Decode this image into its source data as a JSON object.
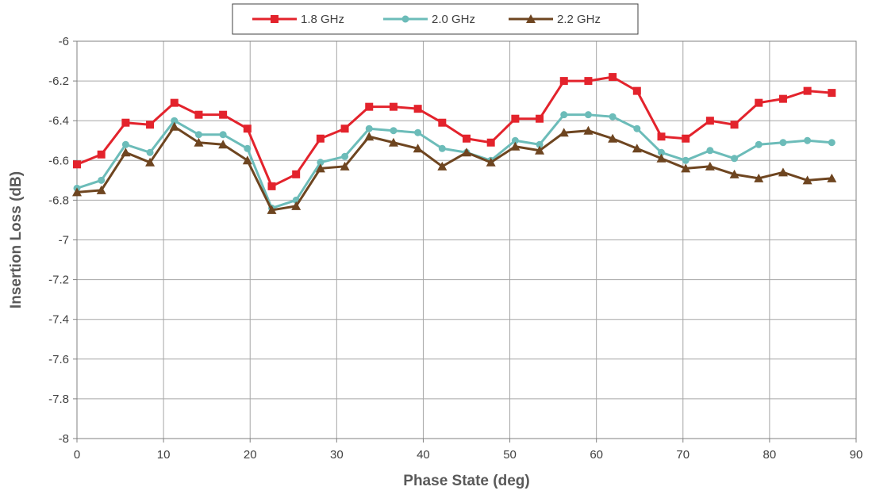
{
  "chart_data": {
    "type": "line",
    "xlabel": "Phase State (deg)",
    "ylabel": "Insertion Loss (dB)",
    "xlim": [
      0,
      90
    ],
    "ylim": [
      -8,
      -6
    ],
    "x_ticks": [
      0,
      10,
      20,
      30,
      40,
      50,
      60,
      70,
      80,
      90
    ],
    "y_ticks": [
      -6,
      -6.2,
      -6.4,
      -6.6,
      -6.8,
      -7,
      -7.2,
      -7.4,
      -7.6,
      -7.8,
      -8
    ],
    "x_tick_labels": [
      "0",
      "10",
      "20",
      "30",
      "40",
      "50",
      "60",
      "70",
      "80",
      "90"
    ],
    "y_tick_labels": [
      "-6",
      "-6.2",
      "-6.4",
      "-6.6",
      "-6.8",
      "-7",
      "-7.2",
      "-7.4",
      "-7.6",
      "-7.8",
      "-8"
    ],
    "grid": true,
    "legend_position": "top",
    "x": [
      0,
      2.8125,
      5.625,
      8.4375,
      11.25,
      14.0625,
      16.875,
      19.6875,
      22.5,
      25.3125,
      28.125,
      30.9375,
      33.75,
      36.5625,
      39.375,
      42.1875,
      45,
      47.8125,
      50.625,
      53.4375,
      56.25,
      59.0625,
      61.875,
      64.6875,
      67.5,
      70.3125,
      73.125,
      75.9375,
      78.75,
      81.5625,
      84.375,
      87.1875
    ],
    "series": [
      {
        "name": "1.8 GHz",
        "color": "#e3232c",
        "marker": "square",
        "values": [
          -6.62,
          -6.57,
          -6.41,
          -6.42,
          -6.31,
          -6.37,
          -6.37,
          -6.44,
          -6.73,
          -6.67,
          -6.49,
          -6.44,
          -6.33,
          -6.33,
          -6.34,
          -6.41,
          -6.49,
          -6.51,
          -6.39,
          -6.39,
          -6.2,
          -6.2,
          -6.18,
          -6.25,
          -6.48,
          -6.49,
          -6.4,
          -6.42,
          -6.31,
          -6.29,
          -6.25,
          -6.26
        ]
      },
      {
        "name": "2.0 GHz",
        "color": "#6cbcb9",
        "marker": "circle",
        "values": [
          -6.74,
          -6.7,
          -6.52,
          -6.56,
          -6.4,
          -6.47,
          -6.47,
          -6.54,
          -6.84,
          -6.8,
          -6.61,
          -6.58,
          -6.44,
          -6.45,
          -6.46,
          -6.54,
          -6.56,
          -6.6,
          -6.5,
          -6.52,
          -6.37,
          -6.37,
          -6.38,
          -6.44,
          -6.56,
          -6.6,
          -6.55,
          -6.59,
          -6.52,
          -6.51,
          -6.5,
          -6.51
        ]
      },
      {
        "name": "2.2 GHz",
        "color": "#6e4520",
        "marker": "triangle",
        "values": [
          -6.76,
          -6.75,
          -6.56,
          -6.61,
          -6.43,
          -6.51,
          -6.52,
          -6.6,
          -6.85,
          -6.83,
          -6.64,
          -6.63,
          -6.48,
          -6.51,
          -6.54,
          -6.63,
          -6.56,
          -6.61,
          -6.53,
          -6.55,
          -6.46,
          -6.45,
          -6.49,
          -6.54,
          -6.59,
          -6.64,
          -6.63,
          -6.67,
          -6.69,
          -6.66,
          -6.7,
          -6.69
        ]
      }
    ]
  }
}
